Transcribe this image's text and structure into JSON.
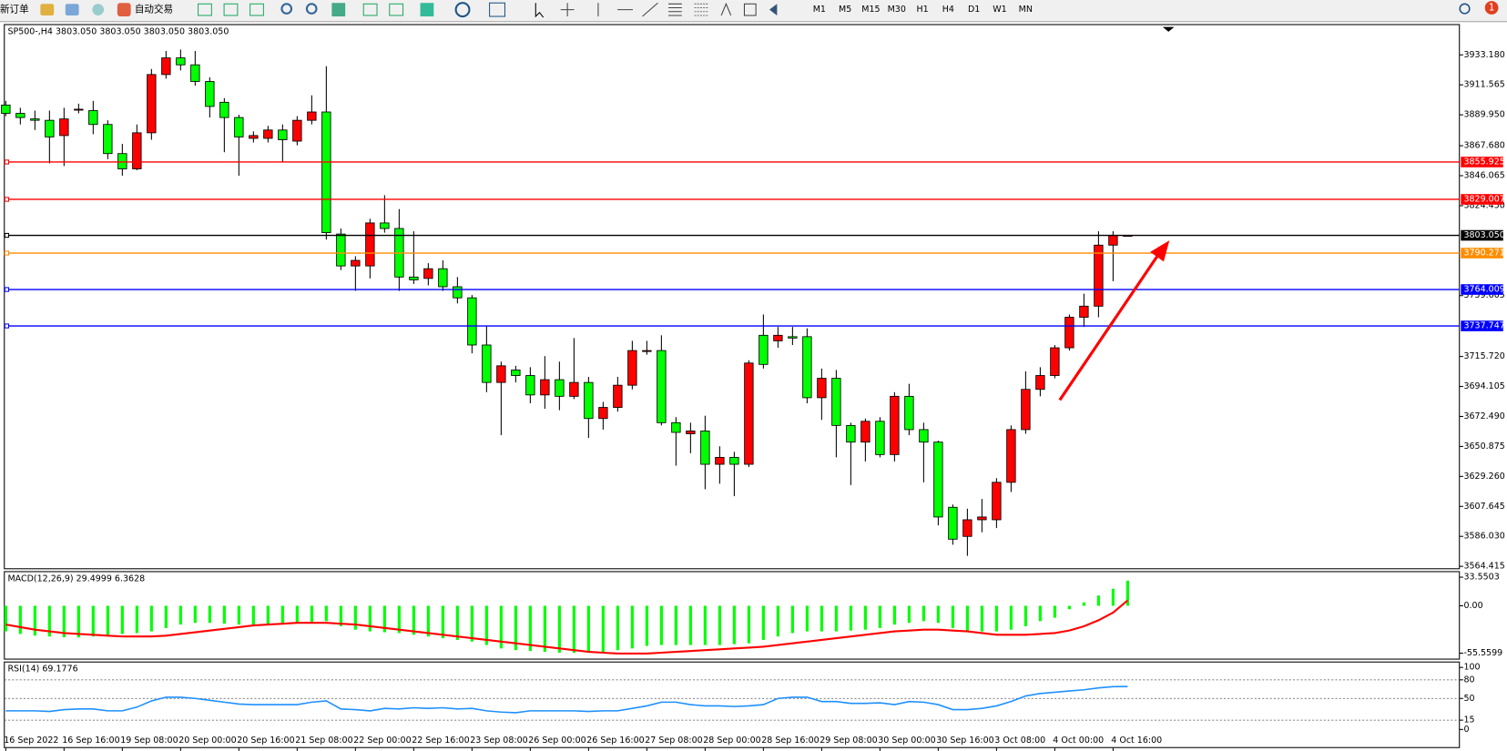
{
  "toolbar": {
    "new_order": "新订单",
    "auto_trading": "自动交易",
    "timeframes": [
      "M1",
      "M5",
      "M15",
      "M30",
      "H1",
      "H4",
      "D1",
      "W1",
      "MN"
    ],
    "notifications": 1
  },
  "chart_data": [
    {
      "type": "candlestick",
      "title": "SP500-,H4  3803.050 3803.050 3803.050 3803.050",
      "up_color": "#ff0000",
      "down_color": "#00ff00",
      "categories": [
        "16 Sep 2022",
        null,
        null,
        null,
        "16 Sep 16:00",
        null,
        null,
        null,
        "19 Sep 08:00",
        null,
        null,
        null,
        "20 Sep 00:00",
        null,
        null,
        null,
        "20 Sep 16:00",
        null,
        null,
        null,
        "21 Sep 08:00",
        null,
        null,
        null,
        "22 Sep 00:00",
        null,
        null,
        null,
        "22 Sep 16:00",
        null,
        null,
        null,
        "23 Sep 08:00",
        null,
        null,
        null,
        "26 Sep 00:00",
        null,
        null,
        null,
        "26 Sep 16:00",
        null,
        null,
        null,
        "27 Sep 08:00",
        null,
        null,
        null,
        "28 Sep 00:00",
        null,
        null,
        null,
        "28 Sep 16:00",
        null,
        null,
        null,
        "29 Sep 08:00",
        null,
        null,
        null,
        "30 Sep 00:00",
        null,
        null,
        null,
        "30 Sep 16:00",
        null,
        null,
        null,
        "3 Oct 08:00",
        null,
        null,
        null,
        "4 Oct 00:00",
        null,
        null,
        null,
        "4 Oct 16:00",
        null
      ],
      "open": [
        3897,
        3891,
        3887,
        3886,
        3875,
        3894,
        3893,
        3883,
        3862,
        3851,
        3877,
        3919,
        3931,
        3926,
        3914,
        3899,
        3888,
        3873,
        3873,
        3879,
        3871,
        3886,
        3892,
        3804,
        3781,
        3781,
        3812,
        3808,
        3773,
        3772,
        3779,
        3766,
        3758,
        3724,
        3697,
        3706,
        3702,
        3688,
        3699,
        3687,
        3697,
        3671,
        3679,
        3695,
        3720,
        3720,
        3668,
        3660,
        3662,
        3638,
        3643,
        3638,
        3731,
        3727,
        3730,
        3730,
        3686,
        3700,
        3666,
        3654,
        3669,
        3645,
        3687,
        3663,
        3654,
        3607,
        3586,
        3598,
        3598,
        3625,
        3663,
        3692,
        3702,
        3722,
        3744,
        3752,
        3796,
        3803.05
      ],
      "high": [
        3900,
        3895,
        3893,
        3893,
        3895,
        3898,
        3900,
        3886,
        3869,
        3883,
        3923,
        3936,
        3937,
        3936,
        3917,
        3902,
        3890,
        3878,
        3882,
        3883,
        3889,
        3904,
        3925,
        3808,
        3788,
        3815,
        3832,
        3822,
        3806,
        3783,
        3785,
        3773,
        3760,
        3738,
        3712,
        3709,
        3708,
        3716,
        3712,
        3729,
        3701,
        3683,
        3701,
        3727,
        3727,
        3731,
        3672,
        3668,
        3673,
        3651,
        3647,
        3713,
        3746,
        3737,
        3737,
        3736,
        3707,
        3706,
        3668,
        3671,
        3672,
        3690,
        3696,
        3668,
        3655,
        3609,
        3606,
        3613,
        3628,
        3666,
        3705,
        3708,
        3724,
        3746,
        3761,
        3806,
        3806,
        3803.05
      ],
      "low": [
        3889,
        3883,
        3879,
        3855,
        3853,
        3891,
        3876,
        3858,
        3846,
        3850,
        3872,
        3916,
        3922,
        3911,
        3888,
        3863,
        3846,
        3870,
        3870,
        3856,
        3868,
        3883,
        3800,
        3778,
        3763,
        3772,
        3805,
        3763,
        3768,
        3767,
        3763,
        3754,
        3718,
        3690,
        3659,
        3697,
        3682,
        3678,
        3677,
        3685,
        3657,
        3663,
        3676,
        3692,
        3717,
        3666,
        3637,
        3646,
        3620,
        3624,
        3615,
        3636,
        3707,
        3722,
        3724,
        3682,
        3670,
        3643,
        3623,
        3640,
        3643,
        3640,
        3659,
        3625,
        3594,
        3580,
        3572,
        3589,
        3592,
        3618,
        3660,
        3687,
        3700,
        3720,
        3737,
        3744,
        3770,
        3803.05
      ],
      "close": [
        3891,
        3888,
        3886,
        3874,
        3887,
        3894,
        3883,
        3862,
        3851,
        3877,
        3919,
        3931,
        3926,
        3914,
        3896,
        3888,
        3874,
        3875,
        3879,
        3872,
        3886,
        3892,
        3805,
        3781,
        3785,
        3812,
        3808,
        3773,
        3771,
        3779,
        3766,
        3758,
        3724,
        3697,
        3709,
        3702,
        3688,
        3699,
        3687,
        3697,
        3671,
        3679,
        3695,
        3720,
        3720,
        3668,
        3661,
        3662,
        3638,
        3643,
        3638,
        3711,
        3710,
        3731,
        3729,
        3686,
        3700,
        3666,
        3654,
        3669,
        3645,
        3687,
        3663,
        3654,
        3600,
        3584,
        3598,
        3600,
        3625,
        3663,
        3692,
        3702,
        3722,
        3744,
        3752,
        3796,
        3803,
        3803.05
      ],
      "ylim": [
        3563.03,
        3955.36
      ],
      "yticks": [
        {
          "value": 3933.18,
          "label": "3933.180"
        },
        {
          "value": 3911.565,
          "label": "3911.565"
        },
        {
          "value": 3889.95,
          "label": "3889.950"
        },
        {
          "value": 3867.68,
          "label": "3867.680"
        },
        {
          "value": 3846.065,
          "label": "3846.065"
        },
        {
          "value": 3824.45,
          "label": "3824.450"
        },
        {
          "value": 3759.605,
          "label": "3759.605"
        },
        {
          "value": 3715.72,
          "label": "3715.720"
        },
        {
          "value": 3694.105,
          "label": "3694.105"
        },
        {
          "value": 3672.49,
          "label": "3672.490"
        },
        {
          "value": 3650.875,
          "label": "3650.875"
        },
        {
          "value": 3629.26,
          "label": "3629.260"
        },
        {
          "value": 3607.645,
          "label": "3607.645"
        },
        {
          "value": 3586.03,
          "label": "3586.030"
        },
        {
          "value": 3564.415,
          "label": "3564.415"
        }
      ],
      "levels": [
        {
          "value": 3855.925,
          "label": "3855.925",
          "color": "#ff0000"
        },
        {
          "value": 3829.007,
          "label": "3829.007",
          "color": "#ff0000"
        },
        {
          "value": 3803.05,
          "label": "3803.050",
          "color": "#000000"
        },
        {
          "value": 3790.271,
          "label": "3790.271",
          "color": "#ff8c00"
        },
        {
          "value": 3764.009,
          "label": "3764.009",
          "color": "#0000ff"
        },
        {
          "value": 3737.747,
          "label": "3737.747",
          "color": "#0000ff"
        }
      ]
    },
    {
      "type": "macd",
      "title": "MACD(12,26,9) 29.4999 6.3628",
      "histogram_color": "#00ff00",
      "signal_color": "#ff0000",
      "histogram": [
        -30,
        -33,
        -35,
        -36,
        -37,
        -37,
        -36,
        -34,
        -33,
        -32,
        -30,
        -26,
        -22,
        -20,
        -20,
        -21,
        -22,
        -22,
        -21,
        -20,
        -20,
        -19,
        -18,
        -24,
        -28,
        -30,
        -31,
        -32,
        -34,
        -36,
        -38,
        -40,
        -42,
        -46,
        -50,
        -52,
        -53,
        -54,
        -55,
        -55,
        -54,
        -54,
        -52,
        -50,
        -47,
        -46,
        -46,
        -46,
        -46,
        -46,
        -45,
        -44,
        -40,
        -36,
        -32,
        -30,
        -30,
        -30,
        -29,
        -28,
        -26,
        -22,
        -20,
        -18,
        -20,
        -26,
        -30,
        -30,
        -30,
        -28,
        -24,
        -18,
        -14,
        -4,
        4,
        12,
        20,
        29.4999
      ],
      "signal": [
        -22,
        -25,
        -28,
        -30,
        -32,
        -33,
        -34,
        -35,
        -36,
        -36,
        -36,
        -35,
        -33,
        -31,
        -29,
        -27,
        -25,
        -23,
        -22,
        -21,
        -20,
        -20,
        -20,
        -21,
        -22,
        -24,
        -26,
        -28,
        -30,
        -32,
        -34,
        -36,
        -38,
        -40,
        -42,
        -44,
        -46,
        -48,
        -50,
        -52,
        -54,
        -55,
        -56,
        -56,
        -56,
        -55,
        -54,
        -53,
        -52,
        -51,
        -50,
        -49,
        -48,
        -46,
        -44,
        -42,
        -40,
        -38,
        -36,
        -34,
        -32,
        -30,
        -29,
        -28,
        -28,
        -29,
        -30,
        -32,
        -34,
        -34,
        -34,
        -33,
        -32,
        -29,
        -24,
        -17,
        -8,
        6.3628
      ],
      "ylim": [
        -63.1,
        39.5
      ],
      "yticks": [
        {
          "value": 33.5503,
          "label": "33.5503"
        },
        {
          "value": 0,
          "label": "0.00"
        },
        {
          "value": -55.5599,
          "label": "-55.5599"
        }
      ]
    },
    {
      "type": "rsi",
      "title": "RSI(14) 69.1776",
      "color": "#1e90ff",
      "values": [
        30,
        30,
        30,
        29,
        32,
        33,
        33,
        30,
        30,
        36,
        46,
        52,
        52,
        50,
        47,
        44,
        41,
        40,
        40,
        40,
        40,
        44,
        46,
        33,
        32,
        30,
        34,
        33,
        35,
        34,
        35,
        33,
        34,
        30,
        28,
        27,
        30,
        30,
        30,
        30,
        29,
        30,
        30,
        34,
        38,
        44,
        44,
        40,
        38,
        38,
        37,
        38,
        40,
        50,
        52,
        52,
        45,
        45,
        42,
        42,
        43,
        40,
        45,
        44,
        40,
        32,
        32,
        34,
        38,
        45,
        54,
        58,
        60,
        62,
        64,
        67,
        69,
        69.1776
      ],
      "ylim": [
        -30,
        108
      ],
      "yticks": [
        100,
        80,
        50,
        15,
        0
      ]
    }
  ]
}
